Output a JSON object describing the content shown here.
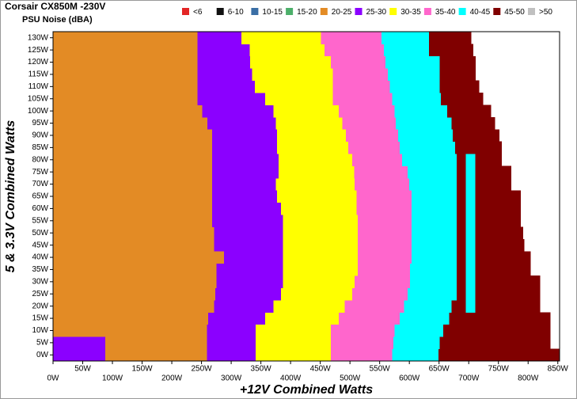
{
  "chart_data": {
    "type": "region-rows",
    "title": "Corsair CX850M -230V",
    "subtitle": "PSU Noise (dBA)",
    "xlabel": "+12V Combined Watts",
    "ylabel": "5 & 3.3V Combined Watts",
    "legend": [
      {
        "name": "<6",
        "color": "#e32626"
      },
      {
        "name": "6-10",
        "color": "#111111"
      },
      {
        "name": "10-15",
        "color": "#3a6ea5"
      },
      {
        "name": "15-20",
        "color": "#4caf6a"
      },
      {
        "name": "20-25",
        "color": "#e38b25"
      },
      {
        "name": "25-30",
        "color": "#8b00ff"
      },
      {
        "name": "30-35",
        "color": "#ffff00"
      },
      {
        "name": "35-40",
        "color": "#ff66cc"
      },
      {
        "name": "40-45",
        "color": "#00ffff"
      },
      {
        "name": "45-50",
        "color": "#800000"
      },
      {
        "name": ">50",
        "color": "#c0c0c0"
      }
    ],
    "rows": [
      {
        "y": 0,
        "bands": [
          5,
          4,
          5,
          6,
          7,
          8,
          9
        ],
        "widths": [
          88,
          171,
          82,
          127,
          103,
          78,
          204
        ]
      },
      {
        "y": 5,
        "bands": [
          5,
          4,
          5,
          6,
          7,
          8,
          9
        ],
        "widths": [
          88,
          171,
          82,
          127,
          105,
          78,
          186
        ]
      },
      {
        "y": 10,
        "bands": [
          4,
          5,
          6,
          7,
          8,
          9
        ],
        "widths": [
          259,
          82,
          127,
          107,
          82,
          180
        ]
      },
      {
        "y": 15,
        "bands": [
          4,
          5,
          6,
          7,
          8,
          9
        ],
        "widths": [
          261,
          96,
          124,
          103,
          83,
          170
        ]
      },
      {
        "y": 20,
        "bands": [
          4,
          5,
          6,
          7,
          8,
          9,
          8,
          9
        ],
        "widths": [
          271,
          100,
          120,
          100,
          80,
          24,
          16,
          109
        ]
      },
      {
        "y": 25,
        "bands": [
          4,
          5,
          6,
          7,
          8,
          9,
          8,
          9
        ],
        "widths": [
          273,
          111,
          120,
          93,
          83,
          15,
          16,
          109
        ]
      },
      {
        "y": 30,
        "bands": [
          4,
          5,
          6,
          7,
          8,
          9,
          8,
          9
        ],
        "widths": [
          275,
          112,
          121,
          93,
          79,
          15,
          16,
          109
        ]
      },
      {
        "y": 35,
        "bands": [
          4,
          5,
          6,
          7,
          8,
          9,
          8,
          9
        ],
        "widths": [
          275,
          112,
          126,
          88,
          79,
          15,
          16,
          93
        ]
      },
      {
        "y": 40,
        "bands": [
          4,
          5,
          6,
          7,
          8,
          9,
          8,
          9
        ],
        "widths": [
          288,
          99,
          126,
          91,
          76,
          15,
          16,
          93
        ]
      },
      {
        "y": 45,
        "bands": [
          4,
          5,
          6,
          7,
          8,
          9,
          8,
          9
        ],
        "widths": [
          271,
          116,
          126,
          91,
          76,
          15,
          16,
          82
        ]
      },
      {
        "y": 50,
        "bands": [
          4,
          5,
          6,
          7,
          8,
          9,
          8,
          9
        ],
        "widths": [
          271,
          116,
          126,
          91,
          76,
          15,
          16,
          80
        ]
      },
      {
        "y": 55,
        "bands": [
          4,
          5,
          6,
          7,
          8,
          9,
          8,
          9
        ],
        "widths": [
          268,
          119,
          126,
          91,
          76,
          15,
          16,
          76
        ]
      },
      {
        "y": 60,
        "bands": [
          4,
          5,
          6,
          7,
          8,
          9,
          8,
          9
        ],
        "widths": [
          268,
          116,
          127,
          93,
          76,
          15,
          16,
          76
        ]
      },
      {
        "y": 65,
        "bands": [
          4,
          5,
          6,
          7,
          8,
          9,
          8,
          9
        ],
        "widths": [
          268,
          109,
          134,
          93,
          76,
          15,
          16,
          76
        ]
      },
      {
        "y": 70,
        "bands": [
          4,
          5,
          6,
          7,
          8,
          9,
          8,
          9
        ],
        "widths": [
          268,
          107,
          133,
          92,
          80,
          15,
          16,
          60
        ]
      },
      {
        "y": 75,
        "bands": [
          4,
          5,
          6,
          7,
          8,
          9,
          8,
          9
        ],
        "widths": [
          268,
          112,
          127,
          90,
          83,
          15,
          16,
          60
        ]
      },
      {
        "y": 80,
        "bands": [
          4,
          5,
          6,
          7,
          8,
          9,
          8,
          9
        ],
        "widths": [
          268,
          112,
          124,
          84,
          92,
          15,
          16,
          44
        ]
      },
      {
        "y": 85,
        "bands": [
          4,
          5,
          6,
          7,
          8,
          9
        ],
        "widths": [
          268,
          109,
          120,
          87,
          93,
          78
        ]
      },
      {
        "y": 90,
        "bands": [
          4,
          5,
          6,
          7,
          8,
          9
        ],
        "widths": [
          268,
          109,
          116,
          88,
          92,
          78
        ]
      },
      {
        "y": 95,
        "bands": [
          4,
          5,
          6,
          7,
          8,
          9
        ],
        "widths": [
          260,
          115,
          112,
          90,
          94,
          73
        ]
      },
      {
        "y": 100,
        "bands": [
          4,
          5,
          6,
          7,
          8,
          9
        ],
        "widths": [
          251,
          120,
          110,
          94,
          89,
          73
        ]
      },
      {
        "y": 105,
        "bands": [
          4,
          5,
          6,
          7,
          8,
          9
        ],
        "widths": [
          243,
          114,
          114,
          100,
          82,
          71
        ]
      },
      {
        "y": 110,
        "bands": [
          4,
          5,
          6,
          7,
          8,
          9
        ],
        "widths": [
          243,
          97,
          131,
          96,
          84,
          66
        ]
      },
      {
        "y": 115,
        "bands": [
          4,
          5,
          6,
          7,
          8,
          9
        ],
        "widths": [
          243,
          92,
          136,
          93,
          87,
          60
        ]
      },
      {
        "y": 120,
        "bands": [
          4,
          5,
          6,
          7,
          8,
          9
        ],
        "widths": [
          243,
          89,
          136,
          92,
          91,
          60
        ]
      },
      {
        "y": 125,
        "bands": [
          4,
          5,
          6,
          7,
          8,
          9
        ],
        "widths": [
          243,
          88,
          126,
          100,
          76,
          74
        ]
      },
      {
        "y": 130,
        "bands": [
          4,
          5,
          6,
          7,
          8,
          9
        ],
        "widths": [
          243,
          74,
          134,
          102,
          80,
          71
        ]
      }
    ],
    "xlim": [
      0,
      853
    ],
    "xticks": [
      {
        "value": 0,
        "label": "0W"
      },
      {
        "value": 50,
        "label": "50W"
      },
      {
        "value": 100,
        "label": "100W"
      },
      {
        "value": 150,
        "label": "150W"
      },
      {
        "value": 200,
        "label": "200W"
      },
      {
        "value": 250,
        "label": "250W"
      },
      {
        "value": 300,
        "label": "300W"
      },
      {
        "value": 350,
        "label": "350W"
      },
      {
        "value": 400,
        "label": "400W"
      },
      {
        "value": 450,
        "label": "450W"
      },
      {
        "value": 500,
        "label": "500W"
      },
      {
        "value": 550,
        "label": "550W"
      },
      {
        "value": 600,
        "label": "600W"
      },
      {
        "value": 650,
        "label": "650W"
      },
      {
        "value": 700,
        "label": "700W"
      },
      {
        "value": 750,
        "label": "750W"
      },
      {
        "value": 800,
        "label": "800W"
      },
      {
        "value": 850,
        "label": "850W"
      }
    ],
    "ylim": [
      -2.5,
      132.5
    ],
    "yticks": [
      {
        "value": 0,
        "label": "0W"
      },
      {
        "value": 5,
        "label": "5W"
      },
      {
        "value": 10,
        "label": "10W"
      },
      {
        "value": 15,
        "label": "15W"
      },
      {
        "value": 20,
        "label": "20W"
      },
      {
        "value": 25,
        "label": "25W"
      },
      {
        "value": 30,
        "label": "30W"
      },
      {
        "value": 35,
        "label": "35W"
      },
      {
        "value": 40,
        "label": "40W"
      },
      {
        "value": 45,
        "label": "45W"
      },
      {
        "value": 50,
        "label": "50W"
      },
      {
        "value": 55,
        "label": "55W"
      },
      {
        "value": 60,
        "label": "60W"
      },
      {
        "value": 65,
        "label": "65W"
      },
      {
        "value": 70,
        "label": "70W"
      },
      {
        "value": 75,
        "label": "75W"
      },
      {
        "value": 80,
        "label": "80W"
      },
      {
        "value": 85,
        "label": "85W"
      },
      {
        "value": 90,
        "label": "90W"
      },
      {
        "value": 95,
        "label": "95W"
      },
      {
        "value": 100,
        "label": "100W"
      },
      {
        "value": 105,
        "label": "105W"
      },
      {
        "value": 110,
        "label": "110W"
      },
      {
        "value": 115,
        "label": "115W"
      },
      {
        "value": 120,
        "label": "120W"
      },
      {
        "value": 125,
        "label": "125W"
      },
      {
        "value": 130,
        "label": "130W"
      }
    ]
  }
}
